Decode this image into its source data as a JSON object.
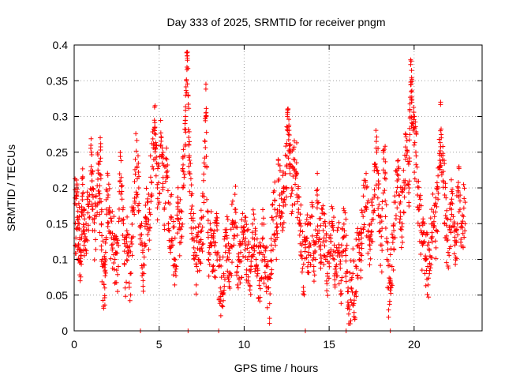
{
  "chart_data": {
    "type": "scatter",
    "title": "Day 333 of 2025, SRMTID for receiver pngm",
    "xlabel": "GPS time / hours",
    "ylabel": "SRMTID / TECUs",
    "xlim": [
      0,
      24
    ],
    "ylim": [
      0,
      0.4
    ],
    "xticks": [
      0,
      5,
      10,
      15,
      20
    ],
    "xtick_labels": [
      "0",
      "5",
      "10",
      "15",
      "20"
    ],
    "yticks": [
      0,
      0.05,
      0.1,
      0.15,
      0.2,
      0.25,
      0.3,
      0.35,
      0.4
    ],
    "ytick_labels": [
      "0",
      "0.05",
      "0.1",
      "0.15",
      "0.2",
      "0.25",
      "0.3",
      "0.35",
      "0.4"
    ],
    "grid": true,
    "marker": "+",
    "color": "#ff0000",
    "series": [
      {
        "name": "SRMTID",
        "points": [
          [
            0.05,
            0.178
          ],
          [
            0.1,
            0.13
          ],
          [
            0.15,
            0.19
          ],
          [
            0.2,
            0.145
          ],
          [
            0.25,
            0.12
          ],
          [
            0.3,
            0.16
          ],
          [
            0.35,
            0.07
          ],
          [
            0.4,
            0.11
          ],
          [
            0.45,
            0.17
          ],
          [
            0.5,
            0.205
          ],
          [
            0.55,
            0.14
          ],
          [
            0.6,
            0.125
          ],
          [
            0.7,
            0.15
          ],
          [
            0.8,
            0.165
          ],
          [
            0.9,
            0.19
          ],
          [
            1.0,
            0.23
          ],
          [
            1.05,
            0.21
          ],
          [
            1.1,
            0.17
          ],
          [
            1.2,
            0.14
          ],
          [
            1.3,
            0.16
          ],
          [
            1.4,
            0.225
          ],
          [
            1.5,
            0.18
          ],
          [
            1.55,
            0.253
          ],
          [
            1.6,
            0.15
          ],
          [
            1.65,
            0.1
          ],
          [
            1.75,
            0.065
          ],
          [
            1.8,
            0.06
          ],
          [
            1.85,
            0.11
          ],
          [
            1.9,
            0.17
          ],
          [
            2.0,
            0.19
          ],
          [
            2.1,
            0.165
          ],
          [
            2.2,
            0.12
          ],
          [
            2.3,
            0.13
          ],
          [
            2.4,
            0.1
          ],
          [
            2.5,
            0.085
          ],
          [
            2.6,
            0.09
          ],
          [
            2.7,
            0.21
          ],
          [
            2.8,
            0.195
          ],
          [
            2.9,
            0.15
          ],
          [
            3.0,
            0.06
          ],
          [
            3.1,
            0.14
          ],
          [
            3.2,
            0.11
          ],
          [
            3.3,
            0.08
          ],
          [
            3.4,
            0.13
          ],
          [
            3.5,
            0.17
          ],
          [
            3.6,
            0.24
          ],
          [
            3.7,
            0.23
          ],
          [
            3.8,
            0.2
          ],
          [
            3.9,
            0.145
          ],
          [
            4.0,
            0.12
          ],
          [
            4.1,
            0.08
          ],
          [
            4.2,
            0.16
          ],
          [
            4.3,
            0.18
          ],
          [
            4.4,
            0.14
          ],
          [
            4.5,
            0.215
          ],
          [
            4.6,
            0.23
          ],
          [
            4.7,
            0.26
          ],
          [
            4.75,
            0.285
          ],
          [
            4.8,
            0.275
          ],
          [
            4.9,
            0.2
          ],
          [
            5.0,
            0.18
          ],
          [
            5.1,
            0.26
          ],
          [
            5.2,
            0.245
          ],
          [
            5.3,
            0.17
          ],
          [
            5.4,
            0.23
          ],
          [
            5.5,
            0.215
          ],
          [
            5.6,
            0.14
          ],
          [
            5.7,
            0.16
          ],
          [
            5.8,
            0.12
          ],
          [
            5.9,
            0.1
          ],
          [
            6.0,
            0.09
          ],
          [
            6.1,
            0.18
          ],
          [
            6.2,
            0.15
          ],
          [
            6.3,
            0.13
          ],
          [
            6.4,
            0.2
          ],
          [
            6.5,
            0.245
          ],
          [
            6.55,
            0.3
          ],
          [
            6.6,
            0.35
          ],
          [
            6.65,
            0.385
          ],
          [
            6.7,
            0.33
          ],
          [
            6.75,
            0.26
          ],
          [
            6.8,
            0.22
          ],
          [
            6.9,
            0.17
          ],
          [
            7.0,
            0.13
          ],
          [
            7.1,
            0.11
          ],
          [
            7.2,
            0.09
          ],
          [
            7.3,
            0.1
          ],
          [
            7.4,
            0.115
          ],
          [
            7.5,
            0.14
          ],
          [
            7.6,
            0.16
          ],
          [
            7.7,
            0.265
          ],
          [
            7.75,
            0.305
          ],
          [
            7.8,
            0.23
          ],
          [
            7.9,
            0.1
          ],
          [
            8.0,
            0.15
          ],
          [
            8.1,
            0.12
          ],
          [
            8.2,
            0.13
          ],
          [
            8.3,
            0.11
          ],
          [
            8.4,
            0.15
          ],
          [
            8.5,
            0.09
          ],
          [
            8.6,
            0.06
          ],
          [
            8.7,
            0.035
          ],
          [
            8.8,
            0.08
          ],
          [
            8.9,
            0.11
          ],
          [
            9.0,
            0.13
          ],
          [
            9.1,
            0.1
          ],
          [
            9.2,
            0.08
          ],
          [
            9.3,
            0.15
          ],
          [
            9.4,
            0.12
          ],
          [
            9.5,
            0.17
          ],
          [
            9.6,
            0.09
          ],
          [
            9.7,
            0.1
          ],
          [
            9.8,
            0.11
          ],
          [
            9.9,
            0.125
          ],
          [
            10.0,
            0.14
          ],
          [
            10.1,
            0.12
          ],
          [
            10.2,
            0.1
          ],
          [
            10.3,
            0.11
          ],
          [
            10.4,
            0.09
          ],
          [
            10.5,
            0.13
          ],
          [
            10.6,
            0.12
          ],
          [
            10.7,
            0.1
          ],
          [
            10.8,
            0.08
          ],
          [
            10.9,
            0.07
          ],
          [
            11.0,
            0.11
          ],
          [
            11.1,
            0.13
          ],
          [
            11.2,
            0.1
          ],
          [
            11.3,
            0.09
          ],
          [
            11.4,
            0.06
          ],
          [
            11.5,
            0.038
          ],
          [
            11.6,
            0.12
          ],
          [
            11.7,
            0.155
          ],
          [
            11.8,
            0.17
          ],
          [
            11.9,
            0.14
          ],
          [
            12.0,
            0.21
          ],
          [
            12.1,
            0.19
          ],
          [
            12.2,
            0.16
          ],
          [
            12.3,
            0.18
          ],
          [
            12.4,
            0.2
          ],
          [
            12.5,
            0.23
          ],
          [
            12.55,
            0.285
          ],
          [
            12.6,
            0.275
          ],
          [
            12.65,
            0.26
          ],
          [
            12.7,
            0.22
          ],
          [
            12.8,
            0.2
          ],
          [
            12.9,
            0.24
          ],
          [
            13.0,
            0.205
          ],
          [
            13.1,
            0.22
          ],
          [
            13.2,
            0.17
          ],
          [
            13.3,
            0.14
          ],
          [
            13.4,
            0.12
          ],
          [
            13.5,
            0.055
          ],
          [
            13.6,
            0.15
          ],
          [
            13.7,
            0.13
          ],
          [
            13.8,
            0.11
          ],
          [
            13.9,
            0.12
          ],
          [
            14.0,
            0.16
          ],
          [
            14.1,
            0.09
          ],
          [
            14.2,
            0.1
          ],
          [
            14.3,
            0.19
          ],
          [
            14.4,
            0.14
          ],
          [
            14.5,
            0.12
          ],
          [
            14.6,
            0.17
          ],
          [
            14.7,
            0.13
          ],
          [
            14.8,
            0.1
          ],
          [
            14.9,
            0.08
          ],
          [
            15.0,
            0.11
          ],
          [
            15.1,
            0.125
          ],
          [
            15.2,
            0.15
          ],
          [
            15.3,
            0.12
          ],
          [
            15.4,
            0.09
          ],
          [
            15.5,
            0.105
          ],
          [
            15.6,
            0.11
          ],
          [
            15.7,
            0.07
          ],
          [
            15.8,
            0.13
          ],
          [
            15.9,
            0.14
          ],
          [
            16.0,
            0.115
          ],
          [
            16.1,
            0.04
          ],
          [
            16.2,
            0.03
          ],
          [
            16.3,
            0.06
          ],
          [
            16.4,
            0.08
          ],
          [
            16.5,
            0.05
          ],
          [
            16.6,
            0.09
          ],
          [
            16.7,
            0.12
          ],
          [
            16.8,
            0.1
          ],
          [
            16.9,
            0.13
          ],
          [
            17.0,
            0.16
          ],
          [
            17.1,
            0.2
          ],
          [
            17.2,
            0.17
          ],
          [
            17.3,
            0.14
          ],
          [
            17.4,
            0.12
          ],
          [
            17.5,
            0.18
          ],
          [
            17.6,
            0.165
          ],
          [
            17.7,
            0.23
          ],
          [
            17.8,
            0.25
          ],
          [
            17.9,
            0.2
          ],
          [
            18.0,
            0.14
          ],
          [
            18.1,
            0.12
          ],
          [
            18.2,
            0.25
          ],
          [
            18.3,
            0.22
          ],
          [
            18.4,
            0.1
          ],
          [
            18.5,
            0.06
          ],
          [
            18.6,
            0.07
          ],
          [
            18.7,
            0.09
          ],
          [
            18.8,
            0.13
          ],
          [
            18.9,
            0.18
          ],
          [
            19.0,
            0.21
          ],
          [
            19.1,
            0.19
          ],
          [
            19.2,
            0.16
          ],
          [
            19.3,
            0.15
          ],
          [
            19.4,
            0.21
          ],
          [
            19.5,
            0.24
          ],
          [
            19.6,
            0.25
          ],
          [
            19.7,
            0.2
          ],
          [
            19.75,
            0.31
          ],
          [
            19.8,
            0.348
          ],
          [
            19.85,
            0.32
          ],
          [
            19.9,
            0.29
          ],
          [
            20.0,
            0.26
          ],
          [
            20.1,
            0.25
          ],
          [
            20.2,
            0.19
          ],
          [
            20.3,
            0.17
          ],
          [
            20.4,
            0.14
          ],
          [
            20.5,
            0.12
          ],
          [
            20.6,
            0.125
          ],
          [
            20.7,
            0.1
          ],
          [
            20.8,
            0.09
          ],
          [
            20.9,
            0.08
          ],
          [
            21.0,
            0.13
          ],
          [
            21.1,
            0.15
          ],
          [
            21.2,
            0.16
          ],
          [
            21.3,
            0.14
          ],
          [
            21.4,
            0.2
          ],
          [
            21.5,
            0.23
          ],
          [
            21.55,
            0.28
          ],
          [
            21.6,
            0.27
          ],
          [
            21.7,
            0.21
          ],
          [
            21.8,
            0.19
          ],
          [
            21.9,
            0.13
          ],
          [
            22.0,
            0.11
          ],
          [
            22.1,
            0.14
          ],
          [
            22.2,
            0.17
          ],
          [
            22.3,
            0.16
          ],
          [
            22.4,
            0.12
          ],
          [
            22.5,
            0.14
          ],
          [
            22.6,
            0.2
          ],
          [
            22.7,
            0.17
          ],
          [
            22.8,
            0.15
          ],
          [
            22.9,
            0.16
          ],
          [
            23.0,
            0.18
          ]
        ]
      }
    ],
    "zero_marks_x": [
      3.9,
      6.7,
      8.5,
      13.6,
      16.0,
      18.6
    ]
  }
}
